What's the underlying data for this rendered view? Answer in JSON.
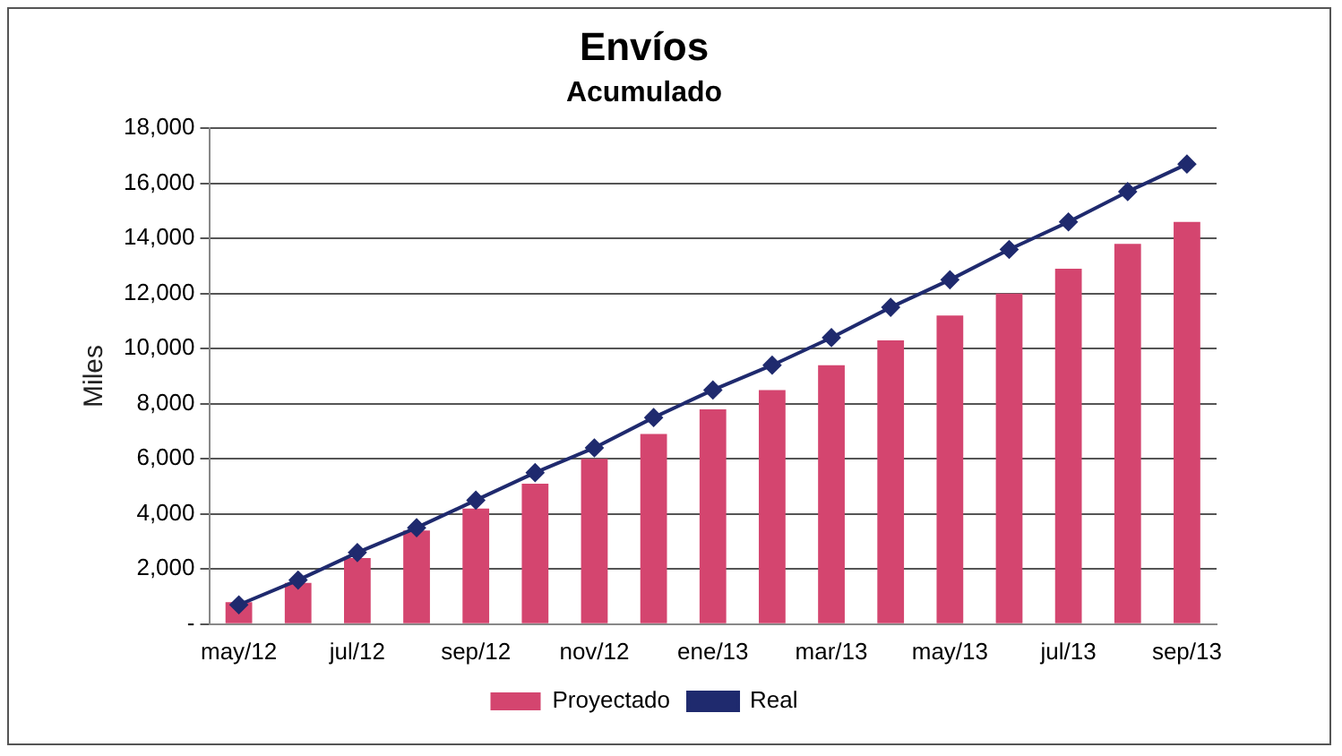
{
  "chart_data": {
    "type": "bar",
    "title": "Envíos",
    "subtitle": "Acumulado",
    "ylabel": "Miles",
    "categories": [
      "may/12",
      null,
      "jul/12",
      null,
      "sep/12",
      null,
      "nov/12",
      null,
      "ene/13",
      null,
      "mar/13",
      null,
      "may/13",
      null,
      "jul/13",
      null,
      "sep/13"
    ],
    "series": [
      {
        "name": "Proyectado",
        "color": "#d4456f",
        "values": [
          800,
          1500,
          2400,
          3400,
          4200,
          5100,
          6000,
          6900,
          7800,
          8500,
          9400,
          10300,
          11200,
          12000,
          12900,
          13800,
          14600
        ]
      },
      {
        "name": "Real",
        "type": "line",
        "color": "#1f2a6e",
        "marker": "diamond",
        "values": [
          700,
          1600,
          2600,
          3500,
          4500,
          5500,
          6400,
          7500,
          8500,
          9400,
          10400,
          11500,
          12500,
          13600,
          14600,
          15700,
          16700
        ]
      }
    ],
    "ylim": [
      0,
      18000
    ],
    "yticks": [
      {
        "value": 0,
        "label": "-"
      },
      {
        "value": 2000,
        "label": "2,000"
      },
      {
        "value": 4000,
        "label": "4,000"
      },
      {
        "value": 6000,
        "label": "6,000"
      },
      {
        "value": 8000,
        "label": "8,000"
      },
      {
        "value": 10000,
        "label": "10,000"
      },
      {
        "value": 12000,
        "label": "12,000"
      },
      {
        "value": 14000,
        "label": "14,000"
      },
      {
        "value": 16000,
        "label": "16,000"
      },
      {
        "value": 18000,
        "label": "18,000"
      }
    ],
    "grid": "y",
    "legend": "bottom"
  }
}
